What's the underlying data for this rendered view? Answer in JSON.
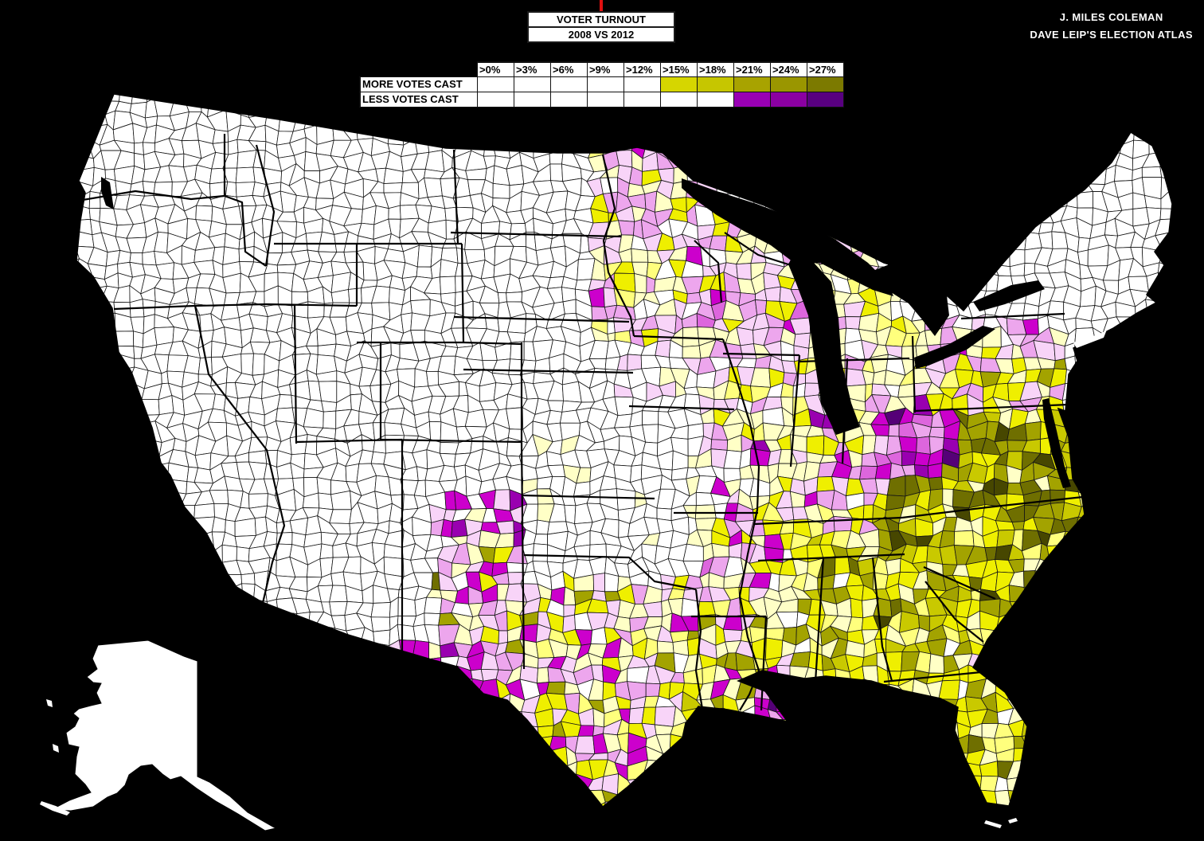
{
  "header": {
    "title_line1": "VOTER TURNOUT",
    "title_line2": "2008 VS 2012",
    "attribution_line1": "J. MILES COLEMAN",
    "attribution_line2": "DAVE LEIP'S ELECTION ATLAS",
    "tick_color": "#e01010"
  },
  "legend": {
    "thresholds": [
      ">0%",
      ">3%",
      ">6%",
      ">9%",
      ">12%",
      ">15%",
      ">18%",
      ">21%",
      ">24%",
      ">27%"
    ],
    "rows": [
      {
        "label": "MORE VOTES CAST",
        "cell_colors": [
          "#ffffff",
          "#ffffff",
          "#ffffff",
          "#ffffff",
          "#ffffff",
          "#d6d600",
          "#c6c600",
          "#a8a300",
          "#9a9600",
          "#7c7a00"
        ]
      },
      {
        "label": "LESS VOTES CAST",
        "cell_colors": [
          "#ffffff",
          "#ffffff",
          "#ffffff",
          "#ffffff",
          "#ffffff",
          "#ffffff",
          "#ffffff",
          "#9900b4",
          "#8b00a2",
          "#580080"
        ]
      }
    ]
  },
  "map": {
    "background": "#000000",
    "land": "#ffffff",
    "county_border_color": "#161616",
    "state_border_color": "#000000",
    "county_palette": {
      "white": "#ffffff",
      "pale_yellow": "#ffffc6",
      "light_yellow": "#ffff7d",
      "yellow": "#efef00",
      "yellow_olive": "#c9c900",
      "olive": "#a3a300",
      "dark_olive": "#6f6f00",
      "deep_olive": "#474700",
      "pale_pink": "#f8d4f8",
      "orchid": "#eda6ed",
      "light_magenta": "#dd66dd",
      "magenta": "#cc00cc",
      "purple": "#9900b0",
      "dark_purple": "#550077"
    }
  }
}
